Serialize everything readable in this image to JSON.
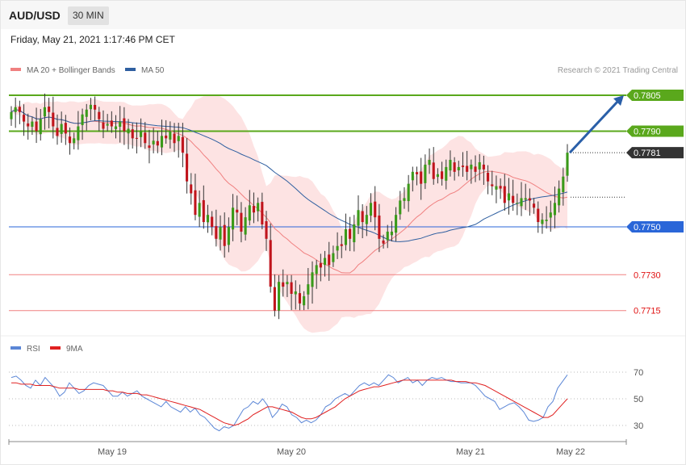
{
  "header": {
    "pair": "AUD/USD",
    "timeframe": "30 MIN"
  },
  "datetime": "Friday, May 21, 2021 1:17:46 PM CET",
  "legend": {
    "ma20": {
      "label": "MA 20 + Bollinger Bands",
      "color": "#f08080"
    },
    "ma50": {
      "label": "MA 50",
      "color": "#2f5fa0"
    }
  },
  "credit": "Research © 2021 Trading Central",
  "rsi_legend": {
    "rsi": {
      "label": "RSI",
      "color": "#5b86d6"
    },
    "ma9": {
      "label": "9MA",
      "color": "#e02020"
    }
  },
  "colors": {
    "up": "#3a9a1a",
    "down": "#c0141c",
    "bands": "#fde3e3",
    "green_level": "#5aa81c",
    "blue_level": "#2a66d8",
    "red_level": "#f08080",
    "current": "#333333",
    "arrow": "#2a5fa8"
  },
  "chart_data": [
    {
      "type": "candlestick",
      "ylim": [
        0.7703,
        0.7815
      ],
      "x_ticks": [
        "May 19",
        "May 20",
        "May 21",
        "May 22"
      ],
      "levels": [
        {
          "label": "0.7805",
          "value": 0.7805,
          "style": "green"
        },
        {
          "label": "0.7790",
          "value": 0.779,
          "style": "green"
        },
        {
          "label": "0.7781",
          "value": 0.7781,
          "style": "current"
        },
        {
          "label": "0.7750",
          "value": 0.775,
          "style": "blue"
        },
        {
          "label": "0.7730",
          "value": 0.773,
          "style": "red"
        },
        {
          "label": "0.7715",
          "value": 0.7715,
          "style": "red"
        }
      ],
      "close": [
        0.7798,
        0.78,
        0.7798,
        0.7794,
        0.7792,
        0.7794,
        0.779,
        0.7795,
        0.78,
        0.7798,
        0.7792,
        0.7788,
        0.7793,
        0.7789,
        0.7785,
        0.7787,
        0.7792,
        0.7797,
        0.7799,
        0.7801,
        0.7799,
        0.7795,
        0.7791,
        0.7793,
        0.7792,
        0.7792,
        0.7794,
        0.779,
        0.7791,
        0.7787,
        0.7787,
        0.779,
        0.7785,
        0.7783,
        0.7786,
        0.7784,
        0.7788,
        0.7787,
        0.779,
        0.7785,
        0.7788,
        0.7781,
        0.7769,
        0.7764,
        0.7755,
        0.776,
        0.7752,
        0.7755,
        0.775,
        0.7745,
        0.775,
        0.7742,
        0.775,
        0.7758,
        0.7756,
        0.7748,
        0.7754,
        0.7759,
        0.7756,
        0.776,
        0.7751,
        0.7745,
        0.7725,
        0.7715,
        0.7727,
        0.7725,
        0.7727,
        0.7722,
        0.7723,
        0.7718,
        0.7721,
        0.7726,
        0.7731,
        0.7734,
        0.7733,
        0.7737,
        0.7734,
        0.7739,
        0.7742,
        0.7742,
        0.7749,
        0.7745,
        0.7751,
        0.7757,
        0.7752,
        0.7755,
        0.776,
        0.7754,
        0.7745,
        0.7743,
        0.7748,
        0.7748,
        0.7755,
        0.7761,
        0.7762,
        0.7768,
        0.7773,
        0.7772,
        0.7768,
        0.7776,
        0.7778,
        0.777,
        0.7772,
        0.777,
        0.7775,
        0.7778,
        0.7773,
        0.7775,
        0.7775,
        0.7773,
        0.7776,
        0.7773,
        0.7777,
        0.7774,
        0.7769,
        0.7767,
        0.7767,
        0.7766,
        0.776,
        0.7764,
        0.776,
        0.776,
        0.7762,
        0.7762,
        0.7761,
        0.7758,
        0.7752,
        0.7753,
        0.7753,
        0.7756,
        0.776,
        0.7766,
        0.7771,
        0.7781
      ]
    },
    {
      "type": "line",
      "title": "RSI",
      "ylim": [
        20,
        75
      ],
      "y_ticks": [
        70,
        50,
        30
      ],
      "series": [
        {
          "name": "RSI",
          "values": [
            66,
            67,
            64,
            60,
            58,
            64,
            60,
            66,
            62,
            58,
            52,
            55,
            62,
            58,
            54,
            56,
            60,
            62,
            61,
            60,
            56,
            52,
            52,
            55,
            52,
            54,
            56,
            52,
            50,
            48,
            46,
            44,
            48,
            44,
            42,
            40,
            44,
            40,
            43,
            38,
            36,
            32,
            28,
            26,
            29,
            28,
            30,
            36,
            42,
            44,
            48,
            46,
            50,
            45,
            36,
            40,
            46,
            44,
            38,
            36,
            32,
            34,
            32,
            34,
            38,
            44,
            46,
            50,
            52,
            54,
            52,
            56,
            60,
            62,
            60,
            62,
            60,
            64,
            68,
            66,
            62,
            64,
            66,
            62,
            64,
            60,
            64,
            66,
            65,
            66,
            64,
            63,
            63,
            62,
            62,
            62,
            60,
            56,
            52,
            50,
            48,
            42,
            44,
            46,
            47,
            44,
            40,
            34,
            33,
            34,
            36,
            44,
            48,
            58,
            63,
            68
          ]
        },
        {
          "name": "9MA",
          "values": [
            62,
            62,
            61,
            61,
            61,
            60,
            60,
            60,
            60,
            59,
            58,
            58,
            58,
            58,
            57,
            57,
            57,
            57,
            57,
            57,
            56,
            56,
            55,
            55,
            54,
            54,
            54,
            53,
            53,
            52,
            51,
            50,
            49,
            48,
            47,
            46,
            45,
            44,
            43,
            42,
            40,
            38,
            36,
            34,
            32,
            31,
            30,
            31,
            33,
            35,
            38,
            40,
            42,
            44,
            44,
            43,
            42,
            41,
            40,
            38,
            36,
            35,
            35,
            36,
            38,
            40,
            42,
            44,
            47,
            50,
            52,
            54,
            56,
            57,
            58,
            59,
            59,
            60,
            61,
            62,
            63,
            64,
            64,
            64,
            64,
            64,
            64,
            64,
            64,
            64,
            64,
            64,
            63,
            63,
            63,
            62,
            62,
            61,
            60,
            58,
            56,
            54,
            52,
            50,
            48,
            46,
            44,
            42,
            40,
            38,
            36,
            36,
            38,
            42,
            46,
            50
          ]
        }
      ]
    }
  ]
}
